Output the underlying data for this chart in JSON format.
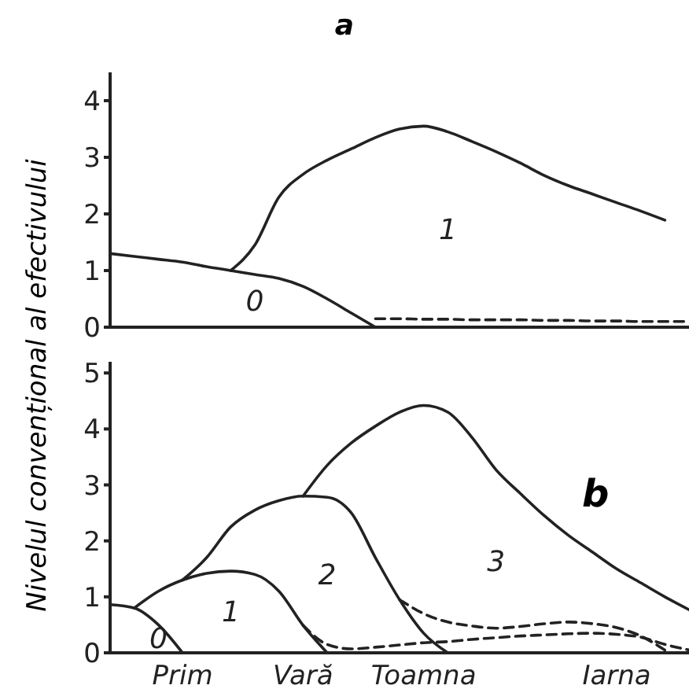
{
  "chart_data": [
    {
      "type": "line",
      "title": "a",
      "categories": [
        null,
        null,
        null,
        null,
        null,
        null,
        null,
        null,
        null,
        null,
        null,
        null,
        null,
        null,
        null,
        null,
        null,
        null,
        null,
        null,
        null,
        null,
        null,
        null,
        null
      ],
      "ylim": [
        0,
        4.5
      ],
      "yticks": [
        0,
        1,
        2,
        3,
        4
      ],
      "tick_labels": "y",
      "marker": "none",
      "series": [
        {
          "name": "0",
          "color": "#222222",
          "values": [
            1.3,
            1.25,
            1.2,
            1.15,
            1.07,
            1.0,
            0.93,
            0.86,
            0.72,
            0.5,
            0.25,
            0,
            null,
            null,
            null,
            null,
            null,
            null,
            null,
            null,
            null,
            null,
            null,
            null,
            null
          ]
        },
        {
          "name": "1",
          "color": "#222222",
          "values": [
            null,
            null,
            null,
            null,
            null,
            1.0,
            1.45,
            2.3,
            2.7,
            2.95,
            3.15,
            3.35,
            3.5,
            3.55,
            3.45,
            3.28,
            3.1,
            2.9,
            2.68,
            2.5,
            2.35,
            2.2,
            2.05,
            1.89,
            null
          ]
        },
        {
          "color": "#222222",
          "line_style": "dashed",
          "values": [
            null,
            null,
            null,
            null,
            null,
            null,
            null,
            null,
            null,
            null,
            null,
            0.15,
            0.15,
            0.14,
            0.14,
            0.13,
            0.13,
            0.13,
            0.12,
            0.12,
            0.11,
            0.11,
            0.1,
            0.1,
            0.1
          ]
        }
      ]
    },
    {
      "type": "line",
      "title": "b",
      "ylabel": "Nivelul convențional al efectivului",
      "categories": [
        null,
        null,
        null,
        "Prim",
        null,
        null,
        null,
        null,
        "Vară",
        null,
        null,
        null,
        null,
        "Toamna",
        null,
        null,
        null,
        null,
        null,
        null,
        null,
        "Iarna",
        null,
        null,
        null
      ],
      "ylim": [
        0,
        5.2
      ],
      "yticks": [
        0,
        1,
        2,
        3,
        4,
        5
      ],
      "marker": "none",
      "series": [
        {
          "name": "0",
          "color": "#222222",
          "values": [
            0.86,
            0.8,
            0.5,
            0,
            null,
            null,
            null,
            null,
            null,
            null,
            null,
            null,
            null,
            null,
            null,
            null,
            null,
            null,
            null,
            null,
            null,
            null,
            null,
            null,
            null
          ]
        },
        {
          "name": "1",
          "color": "#222222",
          "values": [
            null,
            0.8,
            1.1,
            1.3,
            1.42,
            1.46,
            1.4,
            1.1,
            0.49,
            0,
            null,
            null,
            null,
            null,
            null,
            null,
            null,
            null,
            null,
            null,
            null,
            null,
            null,
            null,
            null
          ]
        },
        {
          "name": "2",
          "color": "#222222",
          "values": [
            null,
            null,
            null,
            1.3,
            1.7,
            2.25,
            2.55,
            2.72,
            2.8,
            2.78,
            2.5,
            1.7,
            0.95,
            0.35,
            0,
            null,
            null,
            null,
            null,
            null,
            null,
            null,
            null,
            null,
            null
          ]
        },
        {
          "name": "3",
          "color": "#222222",
          "values": [
            null,
            null,
            null,
            null,
            null,
            null,
            null,
            null,
            2.8,
            3.35,
            3.75,
            4.05,
            4.3,
            4.42,
            4.3,
            3.85,
            3.27,
            2.85,
            2.45,
            2.1,
            1.8,
            1.5,
            1.25,
            1.0,
            0.77
          ]
        },
        {
          "color": "#222222",
          "line_style": "dashed",
          "values": [
            null,
            null,
            null,
            null,
            null,
            null,
            null,
            null,
            null,
            null,
            null,
            null,
            0.95,
            0.7,
            0.55,
            0.48,
            0.44,
            0.47,
            0.52,
            0.55,
            0.52,
            0.45,
            0.3,
            0.05,
            null
          ]
        },
        {
          "color": "#222222",
          "line_style": "dashed",
          "values": [
            null,
            null,
            null,
            null,
            null,
            null,
            null,
            null,
            0.49,
            0.15,
            0.07,
            0.1,
            0.14,
            0.18,
            0.2,
            0.24,
            0.27,
            0.3,
            0.32,
            0.34,
            0.35,
            0.33,
            0.28,
            0.15,
            0.05
          ]
        }
      ]
    }
  ]
}
